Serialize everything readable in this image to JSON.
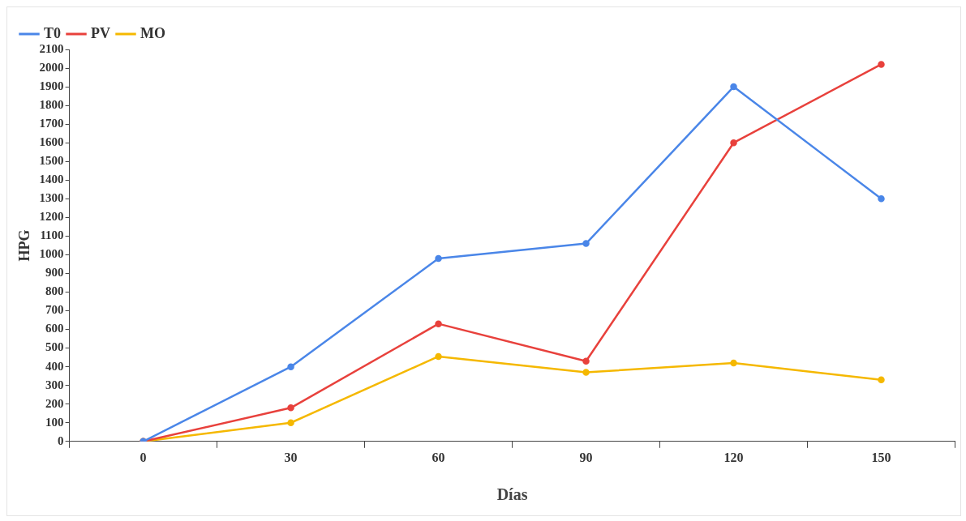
{
  "chart_data": {
    "type": "line",
    "xlabel": "Días",
    "ylabel": "HPG",
    "categories": [
      "0",
      "30",
      "60",
      "90",
      "120",
      "150"
    ],
    "series": [
      {
        "name": "T0",
        "color": "#4a86e8",
        "values": [
          0,
          400,
          980,
          1060,
          1900,
          1300
        ]
      },
      {
        "name": "PV",
        "color": "#e8413c",
        "values": [
          0,
          180,
          630,
          430,
          1600,
          2020
        ]
      },
      {
        "name": "MO",
        "color": "#f5b800",
        "values": [
          0,
          100,
          455,
          370,
          420,
          330
        ]
      }
    ],
    "ylim": [
      0,
      2100
    ],
    "yticks": [
      0,
      100,
      200,
      300,
      400,
      500,
      600,
      700,
      800,
      900,
      1000,
      1100,
      1200,
      1300,
      1400,
      1500,
      1600,
      1700,
      1800,
      1900,
      2000,
      2100
    ],
    "grid": false,
    "legend": "top left",
    "marker": "circle",
    "line_style": "solid"
  }
}
